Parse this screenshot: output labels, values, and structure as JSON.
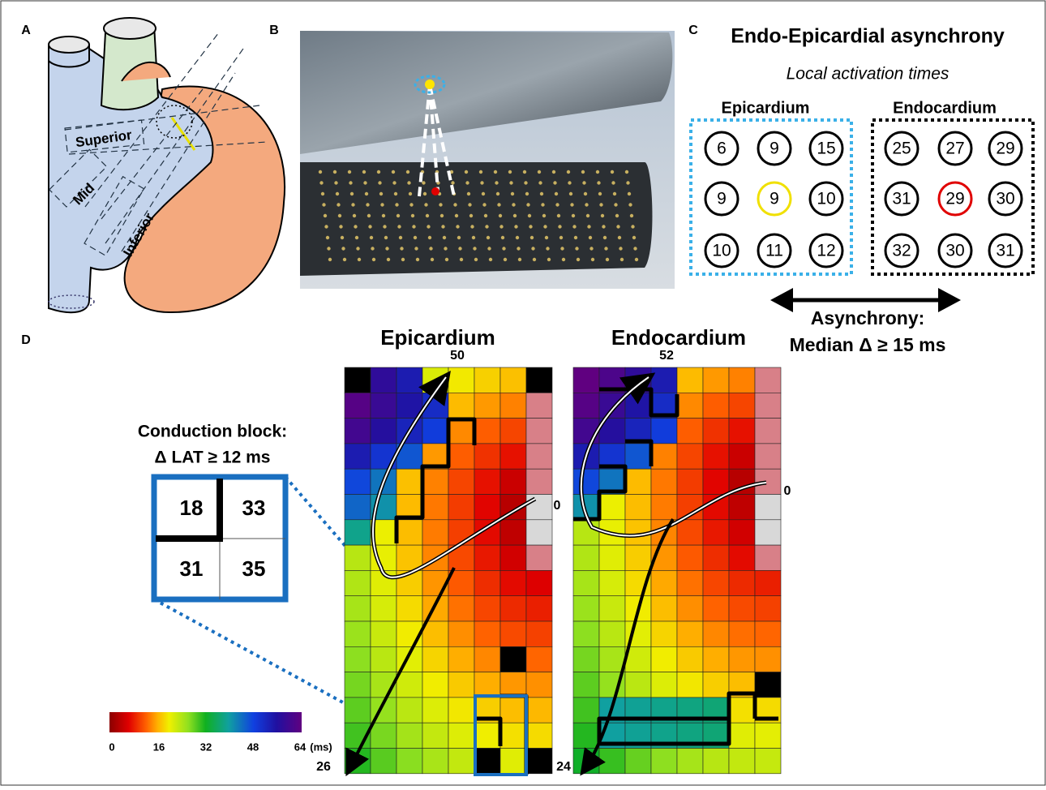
{
  "panel_a": {
    "label": "A",
    "regions": [
      "Superior",
      "Mid",
      "Inferior"
    ]
  },
  "panel_b": {
    "label": "B"
  },
  "panel_c": {
    "label": "C",
    "title": "Endo-Epicardial asynchrony",
    "subtitle": "Local activation times",
    "epicardium": {
      "title": "Epicardium",
      "values": [
        6,
        9,
        15,
        9,
        9,
        10,
        10,
        11,
        12
      ]
    },
    "endocardium": {
      "title": "Endocardium",
      "values": [
        25,
        27,
        29,
        31,
        29,
        30,
        32,
        30,
        31
      ]
    },
    "asynchrony": [
      "Asynchrony:",
      "Median Δ ≥ 15 ms"
    ]
  },
  "panel_d": {
    "label": "D",
    "maps": [
      {
        "title": "Epicardium",
        "top": 50,
        "right": 0,
        "bottom_left": 26,
        "bottom_right": 24
      },
      {
        "title": "Endocardium",
        "top": 52,
        "right": 0
      }
    ],
    "conduction_block": {
      "lines": [
        "Conduction block:",
        "Δ LAT ≥ 12 ms"
      ],
      "cells": [
        18,
        33,
        31,
        35
      ]
    },
    "colorbar": {
      "ticks": [
        0,
        16,
        32,
        48,
        64
      ],
      "unit": "(ms)"
    }
  }
}
